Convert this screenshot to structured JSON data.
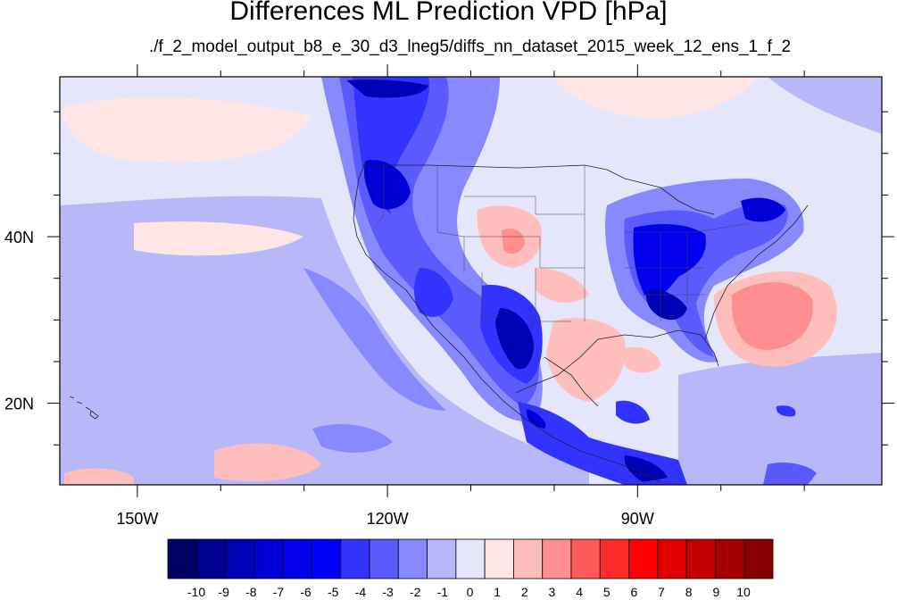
{
  "title": "Differences ML Prediction VPD [hPa]",
  "subtitle": "./f_2_model_output_b8_e_30_d3_lneg5/diffs_nn_dataset_2015_week_12_ens_1_f_2",
  "axes": {
    "lon_ticks": [
      {
        "label": "150W",
        "lon": -150
      },
      {
        "label": "120W",
        "lon": -120
      },
      {
        "label": "90W",
        "lon": -90
      }
    ],
    "lat_ticks": [
      {
        "label": "40N",
        "lat": 40
      },
      {
        "label": "20N",
        "lat": 20
      }
    ],
    "lon_range": [
      -159.3,
      -60.7
    ],
    "lat_range": [
      10.2,
      59.2
    ]
  },
  "colorbar": {
    "levels": [
      "-10",
      "-9",
      "-8",
      "-7",
      "-6",
      "-5",
      "-4",
      "-3",
      "-2",
      "-1",
      "0",
      "1",
      "2",
      "3",
      "4",
      "5",
      "6",
      "7",
      "8",
      "9",
      "10"
    ],
    "colors": [
      "#000064",
      "#000091",
      "#0000b4",
      "#0000d6",
      "#0000ec",
      "#0000ff",
      "#3333ff",
      "#5a5aff",
      "#8888ff",
      "#b8b8f8",
      "#e6e6fa",
      "#ffe6e6",
      "#ffbebe",
      "#ff8f8f",
      "#ff5a5a",
      "#ff2a2a",
      "#ff0000",
      "#e10000",
      "#c30000",
      "#a50000",
      "#870000"
    ]
  }
}
